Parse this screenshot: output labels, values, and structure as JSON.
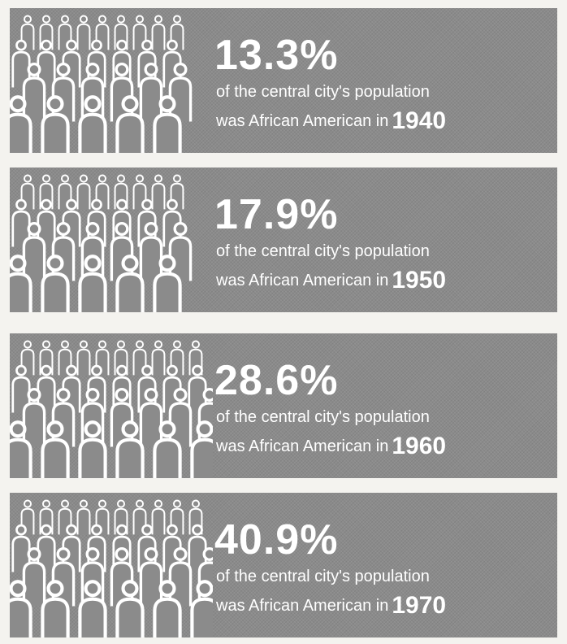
{
  "panels": [
    {
      "percent": "13.3%",
      "line1": "of the central city's population",
      "line2": "was African American in",
      "year": "1940"
    },
    {
      "percent": "17.9%",
      "line1": "of the central city's population",
      "line2": "was African American in",
      "year": "1950"
    },
    {
      "percent": "28.6%",
      "line1": "of the central city's population",
      "line2": "was African American in",
      "year": "1960"
    },
    {
      "percent": "40.9%",
      "line1": "of the central city's population",
      "line2": "was African American in",
      "year": "1970"
    }
  ]
}
